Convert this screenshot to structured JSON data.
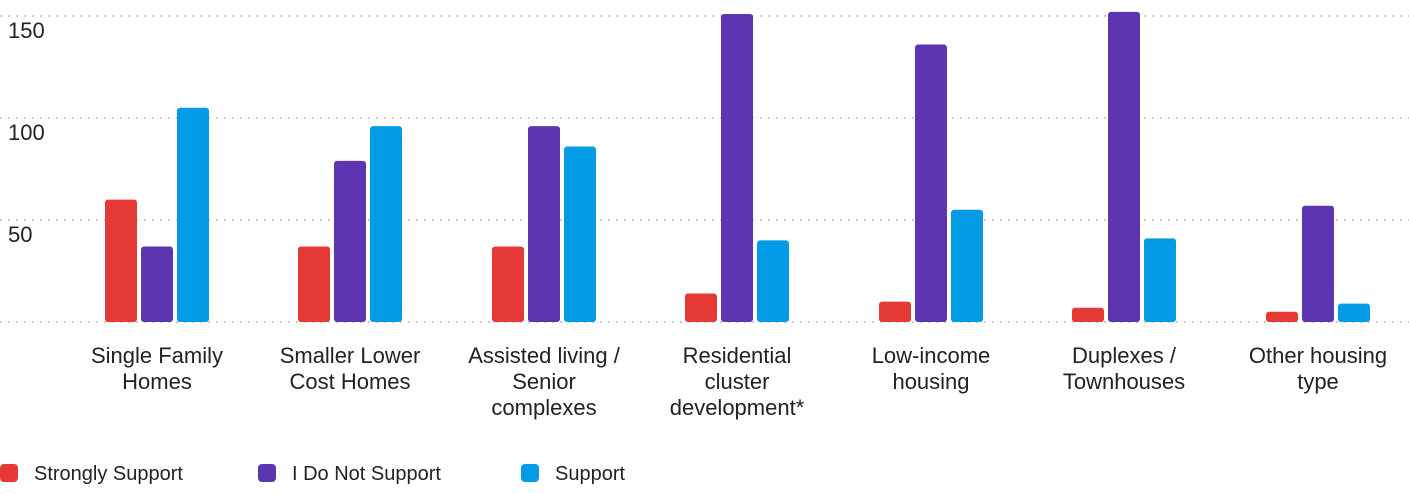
{
  "chart_data": {
    "type": "bar",
    "title": "",
    "xlabel": "",
    "ylabel": "",
    "ylim": [
      0,
      153
    ],
    "yticks": [
      50,
      100,
      150
    ],
    "grid": true,
    "legend_position": "bottom-left",
    "categories": [
      [
        "Single Family",
        "Homes"
      ],
      [
        "Smaller Lower",
        "Cost Homes"
      ],
      [
        "Assisted living /",
        "Senior",
        "complexes"
      ],
      [
        "Residential",
        "cluster",
        "development*"
      ],
      [
        "Low-income",
        "housing"
      ],
      [
        "Duplexes /",
        "Townhouses"
      ],
      [
        "Other housing",
        "type"
      ]
    ],
    "series": [
      {
        "name": "Strongly Support",
        "color": "#e53935",
        "values": [
          60,
          37,
          37,
          14,
          10,
          7,
          5
        ]
      },
      {
        "name": "I Do Not Support",
        "color": "#5e35b1",
        "values": [
          37,
          79,
          96,
          151,
          136,
          152,
          57
        ]
      },
      {
        "name": "Support",
        "color": "#039be5",
        "values": [
          105,
          96,
          86,
          40,
          55,
          41,
          9
        ]
      }
    ]
  }
}
